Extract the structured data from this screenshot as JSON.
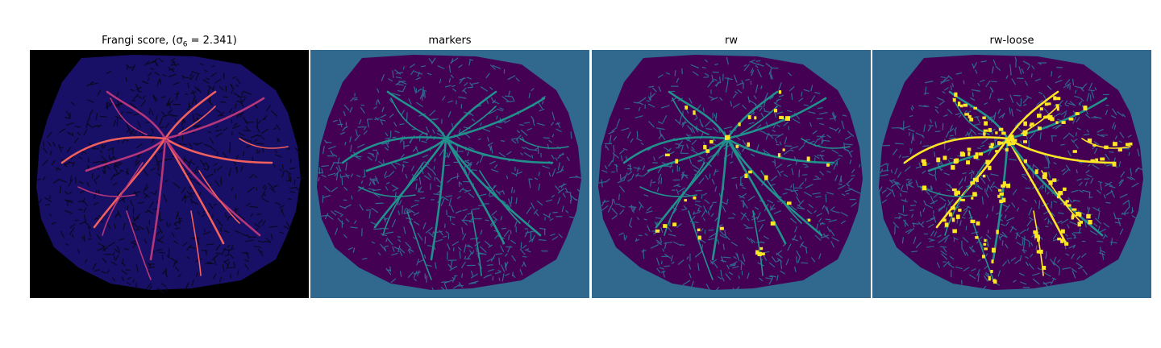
{
  "figure": {
    "panels": [
      {
        "id": "frangi",
        "title": "Frangi score, (σ",
        "title_sub": "6",
        "title_end": " = 2.341)",
        "colormap": "magma"
      },
      {
        "id": "markers",
        "title": "markers",
        "colormap": "viridis"
      },
      {
        "id": "rw",
        "title": "rw",
        "colormap": "viridis"
      },
      {
        "id": "rw-loose",
        "title": "rw-loose",
        "colormap": "viridis"
      }
    ]
  },
  "colors": {
    "background_black": "#000000",
    "frangi_base": "#180f66",
    "frangi_dark": "#0b0820",
    "frangi_bright": "#b5367a",
    "frangi_hot": "#f1605d",
    "viridis_bg": "#31688e",
    "viridis_dark": "#440154",
    "viridis_mid": "#21918c",
    "viridis_yellow": "#fde725"
  }
}
